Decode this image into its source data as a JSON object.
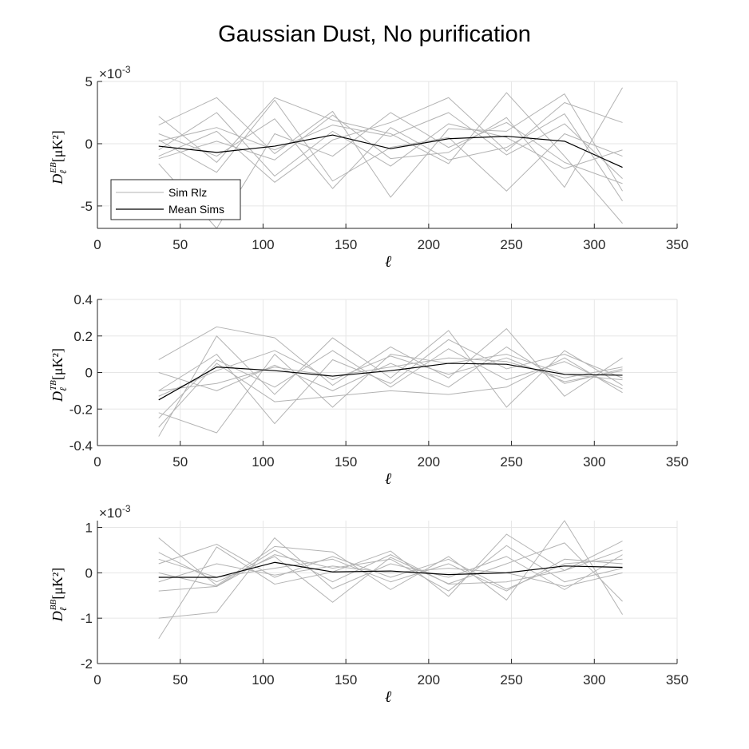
{
  "figure_title": "Gaussian Dust, No purification",
  "chart_data": [
    {
      "type": "line",
      "name": "EB",
      "ylabel": "D",
      "ylabel_sup": "EB",
      "ylabel_sub": "ℓ",
      "ylabel_unit": "[μK²]",
      "xlabel": "ℓ",
      "xlim": [
        0,
        350
      ],
      "ylim": [
        -6.8,
        5
      ],
      "xticks": [
        0,
        50,
        100,
        150,
        200,
        250,
        300,
        350
      ],
      "yticks": [
        -5,
        0,
        5
      ],
      "ytick_labels": [
        "-5",
        "0",
        "5"
      ],
      "exponent_label": "×10",
      "exponent_power": "-3",
      "grid": true,
      "legend": {
        "position": "bottom-left",
        "entries": [
          "Sim Rlz",
          "Mean Sims"
        ]
      },
      "x": [
        37,
        72,
        107,
        142,
        177,
        212,
        247,
        282,
        317
      ],
      "series": [
        {
          "name": "Sim Rlz",
          "color": "#b3b3b3",
          "values": [
            2.2,
            -1.5,
            3.7,
            1.9,
            0.8,
            -1.6,
            4.1,
            -1.0,
            -6.4
          ]
        },
        {
          "name": "Sim Rlz",
          "color": "#b3b3b3",
          "values": [
            1.5,
            3.7,
            -0.8,
            2.6,
            -4.3,
            1.2,
            1.0,
            4.0,
            -3.8
          ]
        },
        {
          "name": "Sim Rlz",
          "color": "#b3b3b3",
          "values": [
            -1.0,
            1.0,
            -3.1,
            0.3,
            1.7,
            3.7,
            -0.6,
            3.3,
            1.7
          ]
        },
        {
          "name": "Sim Rlz",
          "color": "#b3b3b3",
          "values": [
            0.3,
            -2.3,
            3.5,
            -3.0,
            -0.3,
            0.5,
            -3.8,
            0.8,
            -1.0
          ]
        },
        {
          "name": "Sim Rlz",
          "color": "#b3b3b3",
          "values": [
            -1.2,
            0.2,
            -1.3,
            2.3,
            -1.2,
            -0.7,
            2.1,
            -3.5,
            4.5
          ]
        },
        {
          "name": "Sim Rlz",
          "color": "#b3b3b3",
          "values": [
            0.8,
            -1.0,
            2.0,
            -3.6,
            1.3,
            -1.3,
            -0.3,
            2.4,
            -4.6
          ]
        },
        {
          "name": "Sim Rlz",
          "color": "#b3b3b3",
          "values": [
            -0.5,
            2.5,
            -2.6,
            1.0,
            -1.8,
            1.6,
            0.5,
            -2.0,
            -0.5
          ]
        },
        {
          "name": "Sim Rlz",
          "color": "#b3b3b3",
          "values": [
            -1.6,
            -6.8,
            0.8,
            -1.0,
            2.5,
            -0.3,
            1.7,
            -1.5,
            -3.2
          ]
        },
        {
          "name": "Sim Rlz",
          "color": "#b3b3b3",
          "values": [
            0.2,
            1.3,
            -0.5,
            1.5,
            0.6,
            2.5,
            -0.9,
            1.6,
            -2.8
          ]
        },
        {
          "name": "Mean Sims",
          "color": "#000000",
          "values": [
            -0.2,
            -0.7,
            -0.2,
            0.7,
            -0.4,
            0.4,
            0.6,
            0.2,
            -1.9
          ]
        }
      ]
    },
    {
      "type": "line",
      "name": "TB",
      "ylabel": "D",
      "ylabel_sup": "TB",
      "ylabel_sub": "ℓ",
      "ylabel_unit": "[μK²]",
      "xlabel": "ℓ",
      "xlim": [
        0,
        350
      ],
      "ylim": [
        -0.4,
        0.4
      ],
      "xticks": [
        0,
        50,
        100,
        150,
        200,
        250,
        300,
        350
      ],
      "yticks": [
        -0.4,
        -0.2,
        0,
        0.2,
        0.4
      ],
      "ytick_labels": [
        "-0.4",
        "-0.2",
        "0",
        "0.2",
        "0.4"
      ],
      "exponent_label": "",
      "exponent_power": "",
      "grid": true,
      "x": [
        37,
        72,
        107,
        142,
        177,
        212,
        247,
        282,
        317
      ],
      "series": [
        {
          "name": "Sim Rlz",
          "color": "#b3b3b3",
          "values": [
            0.07,
            0.25,
            0.19,
            -0.07,
            0.14,
            -0.03,
            0.24,
            -0.13,
            0.08
          ]
        },
        {
          "name": "Sim Rlz",
          "color": "#b3b3b3",
          "values": [
            -0.35,
            0.2,
            -0.12,
            0.19,
            -0.03,
            0.23,
            -0.19,
            0.12,
            -0.07
          ]
        },
        {
          "name": "Sim Rlz",
          "color": "#b3b3b3",
          "values": [
            -0.22,
            -0.33,
            0.1,
            -0.19,
            0.1,
            0.05,
            0.1,
            -0.01,
            -0.04
          ]
        },
        {
          "name": "Sim Rlz",
          "color": "#b3b3b3",
          "values": [
            -0.1,
            0.1,
            -0.28,
            0.07,
            -0.06,
            0.18,
            0.02,
            0.1,
            -0.03
          ]
        },
        {
          "name": "Sim Rlz",
          "color": "#b3b3b3",
          "values": [
            0.0,
            -0.1,
            0.04,
            -0.1,
            0.05,
            -0.08,
            0.14,
            -0.06,
            0.02
          ]
        },
        {
          "name": "Sim Rlz",
          "color": "#b3b3b3",
          "values": [
            -0.25,
            0.07,
            -0.08,
            0.12,
            -0.08,
            0.13,
            -0.04,
            0.06,
            -0.09
          ]
        },
        {
          "name": "Sim Rlz",
          "color": "#b3b3b3",
          "values": [
            -0.13,
            0.01,
            0.12,
            -0.04,
            0.09,
            -0.01,
            0.08,
            -0.05,
            0.01
          ]
        },
        {
          "name": "Sim Rlz",
          "color": "#b3b3b3",
          "values": [
            -0.3,
            0.05,
            -0.16,
            -0.13,
            -0.1,
            -0.12,
            -0.08,
            0.08,
            -0.11
          ]
        },
        {
          "name": "Sim Rlz",
          "color": "#b3b3b3",
          "values": [
            -0.1,
            -0.06,
            0.03,
            -0.02,
            0.03,
            0.08,
            0.06,
            -0.03,
            0.03
          ]
        },
        {
          "name": "Mean Sims",
          "color": "#000000",
          "values": [
            -0.15,
            0.03,
            0.01,
            -0.02,
            0.01,
            0.05,
            0.045,
            -0.01,
            -0.015
          ]
        }
      ]
    },
    {
      "type": "line",
      "name": "BB",
      "ylabel": "D",
      "ylabel_sup": "BB",
      "ylabel_sub": "ℓ",
      "ylabel_unit": "[μK²]",
      "xlabel": "ℓ",
      "xlim": [
        0,
        350
      ],
      "ylim": [
        -2,
        1.15
      ],
      "xticks": [
        0,
        50,
        100,
        150,
        200,
        250,
        300,
        350
      ],
      "yticks": [
        -2,
        -1,
        0,
        1
      ],
      "ytick_labels": [
        "-2",
        "-1",
        "0",
        "1"
      ],
      "exponent_label": "×10",
      "exponent_power": "-3",
      "grid": true,
      "x": [
        37,
        72,
        107,
        142,
        177,
        212,
        247,
        282,
        317
      ],
      "series": [
        {
          "name": "Sim Rlz",
          "color": "#b3b3b3",
          "values": [
            0.77,
            -0.28,
            0.58,
            0.46,
            -0.37,
            0.36,
            -0.6,
            1.15,
            -0.92
          ]
        },
        {
          "name": "Sim Rlz",
          "color": "#b3b3b3",
          "values": [
            -1.45,
            0.57,
            -0.25,
            0.02,
            0.48,
            -0.52,
            0.85,
            0.05,
            0.7
          ]
        },
        {
          "name": "Sim Rlz",
          "color": "#b3b3b3",
          "values": [
            -1.0,
            -0.87,
            0.77,
            -0.35,
            0.2,
            -0.1,
            0.36,
            -0.37,
            0.4
          ]
        },
        {
          "name": "Sim Rlz",
          "color": "#b3b3b3",
          "values": [
            0.45,
            -0.2,
            0.36,
            -0.65,
            0.34,
            -0.24,
            0.2,
            0.66,
            -0.63
          ]
        },
        {
          "name": "Sim Rlz",
          "color": "#b3b3b3",
          "values": [
            0.2,
            0.63,
            -0.1,
            0.36,
            -0.1,
            0.3,
            -0.36,
            0.2,
            0.3
          ]
        },
        {
          "name": "Sim Rlz",
          "color": "#b3b3b3",
          "values": [
            -0.4,
            -0.3,
            0.4,
            0.1,
            0.3,
            -0.4,
            0.6,
            -0.2,
            0.1
          ]
        },
        {
          "name": "Sim Rlz",
          "color": "#b3b3b3",
          "values": [
            0.3,
            -0.1,
            0.1,
            0.3,
            -0.2,
            0.2,
            -0.4,
            0.3,
            0.2
          ]
        },
        {
          "name": "Sim Rlz",
          "color": "#b3b3b3",
          "values": [
            0.0,
            -0.3,
            0.5,
            -0.2,
            0.4,
            -0.25,
            -0.2,
            0.05,
            0.5
          ]
        },
        {
          "name": "Sim Rlz",
          "color": "#b3b3b3",
          "values": [
            -0.2,
            0.2,
            -0.05,
            0.15,
            0.0,
            0.1,
            0.0,
            -0.3,
            0.0
          ]
        },
        {
          "name": "Mean Sims",
          "color": "#000000",
          "values": [
            -0.1,
            -0.1,
            0.23,
            0.02,
            0.04,
            -0.04,
            0.0,
            0.15,
            0.12
          ]
        }
      ]
    }
  ]
}
